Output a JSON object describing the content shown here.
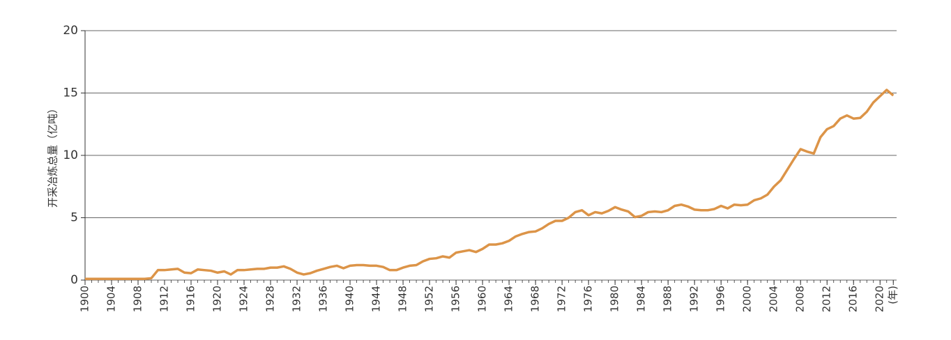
{
  "chart_data": {
    "type": "line",
    "y_label": "开采冶炼总量（亿吨）",
    "x": [
      1900,
      1901,
      1902,
      1903,
      1904,
      1905,
      1906,
      1907,
      1908,
      1909,
      1910,
      1911,
      1912,
      1913,
      1914,
      1915,
      1916,
      1917,
      1918,
      1919,
      1920,
      1921,
      1922,
      1923,
      1924,
      1925,
      1926,
      1927,
      1928,
      1929,
      1930,
      1931,
      1932,
      1933,
      1934,
      1935,
      1936,
      1937,
      1938,
      1939,
      1940,
      1941,
      1942,
      1943,
      1944,
      1945,
      1946,
      1947,
      1948,
      1949,
      1950,
      1951,
      1952,
      1953,
      1954,
      1955,
      1956,
      1957,
      1958,
      1959,
      1960,
      1961,
      1962,
      1963,
      1964,
      1965,
      1966,
      1967,
      1968,
      1969,
      1970,
      1971,
      1972,
      1973,
      1974,
      1975,
      1976,
      1977,
      1978,
      1979,
      1980,
      1981,
      1982,
      1983,
      1984,
      1985,
      1986,
      1987,
      1988,
      1989,
      1990,
      1991,
      1992,
      1993,
      1994,
      1995,
      1996,
      1997,
      1998,
      1999,
      2000,
      2001,
      2002,
      2003,
      2004,
      2005,
      2006,
      2007,
      2008,
      2009,
      2010,
      2011,
      2012,
      2013,
      2014,
      2015,
      2016,
      2017,
      2018,
      2019,
      2020,
      2021,
      2022
    ],
    "series": [
      {
        "color": "#dc9448",
        "values": [
          0.1,
          0.1,
          0.1,
          0.1,
          0.1,
          0.1,
          0.1,
          0.1,
          0.1,
          0.1,
          0.15,
          0.8,
          0.8,
          0.85,
          0.9,
          0.6,
          0.55,
          0.85,
          0.8,
          0.75,
          0.6,
          0.7,
          0.45,
          0.8,
          0.8,
          0.85,
          0.9,
          0.9,
          1.0,
          1.0,
          1.1,
          0.9,
          0.6,
          0.45,
          0.55,
          0.75,
          0.9,
          1.05,
          1.15,
          0.95,
          1.15,
          1.2,
          1.2,
          1.15,
          1.15,
          1.05,
          0.8,
          0.8,
          1.0,
          1.15,
          1.2,
          1.5,
          1.7,
          1.75,
          1.9,
          1.8,
          2.2,
          2.3,
          2.4,
          2.25,
          2.5,
          2.85,
          2.85,
          2.95,
          3.15,
          3.5,
          3.7,
          3.85,
          3.9,
          4.15,
          4.5,
          4.75,
          4.75,
          5.0,
          5.45,
          5.6,
          5.2,
          5.45,
          5.35,
          5.55,
          5.85,
          5.65,
          5.5,
          5.05,
          5.15,
          5.45,
          5.5,
          5.45,
          5.6,
          5.95,
          6.05,
          5.9,
          5.65,
          5.6,
          5.6,
          5.7,
          5.95,
          5.75,
          6.05,
          6.0,
          6.05,
          6.4,
          6.55,
          6.85,
          7.5,
          8.0,
          8.85,
          9.7,
          10.5,
          10.3,
          10.15,
          11.45,
          12.1,
          12.35,
          12.95,
          13.2,
          12.95,
          13.0,
          13.5,
          14.25,
          14.75,
          15.25,
          14.8
        ]
      }
    ],
    "xlim": [
      1900,
      2022.5
    ],
    "xticks": [
      1900,
      1904,
      1908,
      1912,
      1916,
      1920,
      1924,
      1928,
      1932,
      1936,
      1940,
      1944,
      1948,
      1952,
      1956,
      1960,
      1964,
      1968,
      1972,
      1976,
      1980,
      1984,
      1988,
      1992,
      1996,
      2000,
      2004,
      2008,
      2012,
      2016,
      2020,
      {
        "value": 2022,
        "label": "(年)"
      }
    ],
    "ylim": [
      0,
      20
    ],
    "yticks": [
      0,
      5,
      10,
      15,
      20
    ],
    "grid": true
  }
}
